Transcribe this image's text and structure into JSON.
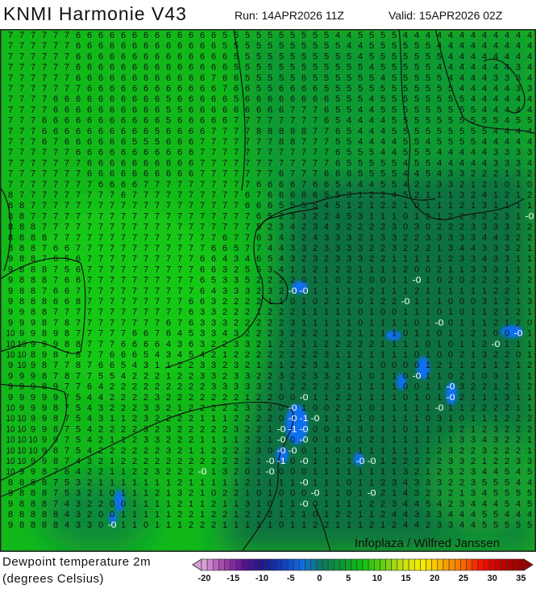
{
  "header": {
    "title": "KNMI Harmonie V43",
    "run": "Run: 14APR2026 11Z",
    "valid": "Valid: 15APR2026 02Z"
  },
  "legend": {
    "line1": "Dewpoint temperature 2m",
    "line2": "(degrees Celsius)",
    "ticks": [
      "-20",
      "-15",
      "-10",
      "-5",
      "0",
      "5",
      "10",
      "15",
      "20",
      "25",
      "30",
      "35"
    ],
    "range": [
      -20,
      35
    ],
    "color_stops": [
      "#d8a0d8",
      "#a040a8",
      "#5a1090",
      "#1a1a8a",
      "#1040c0",
      "#1070e0",
      "#0a7a5a",
      "#0a9a30",
      "#10c010",
      "#60d010",
      "#c8e010",
      "#f8f000",
      "#f8b000",
      "#f87000",
      "#f81000",
      "#c00000",
      "#a00000"
    ]
  },
  "watermark": "Infoplaza / Wilfred Janssen",
  "colors": {
    "coast": "#111111",
    "bright_green": "#12c412",
    "mid_green": "#0b9a30",
    "dark_teal": "#0b6e45",
    "below_zero_blue": "#1070f0"
  },
  "grid_rows": [
    "7 7 7 7 7 7 6 6 6 6 6 6 6 6 6 6 6 6 6 5 5 5 5 5 5 5 5 5 5 4 4 5 5 5 5 4 4 4 4 4 4 4 4 4 4 4 4",
    "7 7 7 7 7 7 6 6 6 6 6 6 6 6 6 6 6 6 6 5 5 5 5 5 5 5 5 5 5 5 4 4 5 5 5 5 5 5 4 4 4 4 4 4 4 4 4",
    "7 7 7 7 7 7 6 6 6 6 6 6 6 6 6 6 6 6 6 6 5 5 5 5 5 5 5 5 5 5 5 4 5 5 5 5 5 5 5 4 4 4 4 4 4 4 4",
    "7 7 7 7 7 7 6 6 6 6 6 6 6 6 6 6 6 6 6 6 5 5 5 5 5 5 5 5 5 5 5 5 4 5 5 5 5 5 4 4 4 4 4 4 4 3 4",
    "7 7 7 7 7 7 6 6 6 6 6 6 6 6 6 6 6 6 7 6 6 5 5 5 5 5 6 5 5 5 5 5 5 4 5 5 5 5 5 4 4 4 4 3 3 3 4",
    "7 7 7 7 7 7 7 6 6 6 6 6 6 6 6 6 6 6 6 7 6 6 5 5 6 6 6 6 5 5 5 5 5 5 5 5 5 5 5 5 4 4 4 4 4 3 3",
    "7 7 7 7 6 6 6 6 6 6 6 6 6 6 5 6 6 6 6 6 5 6 6 6 6 6 6 6 6 5 5 5 4 5 5 5 5 5 5 5 5 4 4 4 4 4 4",
    "7 7 7 7 6 6 6 6 6 6 6 6 6 6 5 5 6 6 6 6 6 6 6 6 6 7 7 7 6 5 5 4 4 5 5 5 5 5 5 5 5 5 4 4 4 4 4",
    "7 7 7 6 6 6 6 6 6 6 6 6 6 6 5 6 6 6 6 6 7 7 7 7 7 7 7 7 6 5 4 4 4 4 5 5 5 5 5 5 5 5 5 5 4 5 5",
    "7 7 7 6 6 6 6 6 6 6 6 6 6 5 6 6 6 6 7 7 7 7 8 8 8 8 8 7 7 6 5 4 4 4 5 5 5 5 5 5 5 5 5 4 4 4 4",
    "7 7 7 6 7 6 6 6 6 6 6 5 5 5 6 6 6 7 7 7 7 7 7 7 8 8 7 7 7 5 5 4 4 4 4 5 5 4 5 5 5 5 4 4 4 4 4",
    "7 7 7 7 7 7 6 6 6 6 6 6 6 6 6 6 6 7 7 7 7 7 7 7 7 7 7 7 7 6 5 5 5 4 4 5 5 5 4 4 4 4 4 3 3 3 3",
    "7 7 7 7 7 7 7 6 6 6 6 6 6 6 6 6 6 7 7 7 7 7 7 7 7 7 7 7 7 6 5 5 5 5 5 4 5 5 4 4 4 4 4 3 3 3 4",
    "7 7 7 7 7 7 7 6 6 6 6 6 6 6 6 6 6 7 7 7 7 7 7 7 6 7 7 7 6 6 6 5 5 5 5 4 4 5 4 3 3 2 2 2 1 3 2",
    "7 7 7 7 7 7 7 7 6 6 6 6 7 7 7 7 7 7 7 7 7 7 6 6 6 6 7 6 6 5 4 4 4 5 5 4 2 2 3 3 2 1 2 1 0 1 0",
    "8 7 7 7 7 7 7 7 7 7 6 7 7 7 7 7 7 7 7 7 7 6 7 6 6 6 6 6 5 5 3 1 2 2 4 5 2 1 1 1 3 2 4 1 2 1 2",
    "8 8 7 7 7 7 7 7 7 7 7 7 7 7 7 7 7 7 7 7 7 6 6 6 5 5 5 5 4 5 1 2 1 2 2 1 0 1 1 1 2 1 3 1 1 1 1",
    "8 8 7 7 7 7 7 7 7 7 7 7 7 7 7 7 7 7 7 7 7 7 6 5 2 3 3 2 2 4 5 3 1 1 1 0 1 2 1 2 2 3 2 2 3 1 -0",
    "8 8 8 7 7 7 7 7 7 7 7 7 7 7 7 7 7 7 7 7 7 7 5 2 3 4 2 3 4 3 2 2 2 2 3 0 3 0 2 2 2 3 3 3 3 2 2",
    "8 8 8 8 7 7 7 7 7 7 7 7 7 7 7 7 7 7 7 6 7 7 6 3 4 3 2 4 3 3 3 2 1 3 3 2 2 3 3 3 3 3 4 4 3 2 2",
    "8 8 8 7 6 6 7 7 7 7 7 7 7 7 7 7 7 7 6 6 5 7 7 4 4 3 3 2 3 3 3 3 2 2 3 2 2 2 1 3 4 4 3 3 3 2 1",
    "9 8 8 7 6 5 6 7 7 7 7 7 7 7 7 7 7 6 6 4 3 4 6 5 4 3 2 3 2 3 3 3 2 2 1 1 1 1 1 2 3 3 4 3 3 1 1",
    "9 8 8 8 7 5 6 7 7 7 7 7 7 7 7 7 7 6 6 3 2 5 5 3 4 1 1 2 1 2 2 1 1 1 1 2 0 0 2 1 1 3 3 3 1 1 1",
    "9 8 8 8 7 6 6 7 7 7 7 7 7 7 7 7 7 6 5 3 3 5 2 2 2 2 0 1 1 0 2 2 0 0 1 1 -0 1 0 2 0 2 2 2 3 2 2",
    "9 8 8 7 6 6 7 7 7 7 7 7 7 7 7 7 7 6 4 3 3 3 2 3 2 -0 -0 1 1 1 1 2 2 1 1 1 2 1 1 1 1 1 1 2 2 1 1",
    "9 8 8 8 6 6 8 7 7 7 7 7 7 7 7 7 6 6 3 2 2 2 2 1 1 0 1 0 2 1 2 0 1 2 2 -0 1 1 1 0 0 0 3 1 2 1 3",
    "9 9 8 8 7 7 7 7 7 7 7 7 7 7 7 7 6 3 3 2 2 2 1 2 2 2 1 1 1 1 1 0 1 0 0 1 1 1 0 1 0 1 1 2 1 2 1",
    "9 9 9 8 7 8 7 7 7 7 7 7 7 7 6 7 6 3 3 3 2 2 2 2 2 3 1 1 1 1 1 0 1 1 1 1 0 1 -0 0 1 1 1 2 1 2 0",
    "10 9 9 8 9 8 7 7 7 7 7 6 6 7 6 4 5 3 3 4 3 2 2 2 3 2 2 2 1 1 2 1 1 1 1 0 1 1 0 1 1 2 1 0 0 -0 1",
    "10 10 9 9 9 8 8 7 7 7 6 6 6 6 4 3 6 3 2 2 3 3 2 1 2 2 1 1 2 2 2 2 2 1 1 1 1 0 1 0 1 1 2 -0 1 1 1",
    "10 10 8 9 8 7 8 7 7 6 6 6 5 4 3 4 5 4 2 1 2 2 2 2 2 2 2 2 3 1 1 2 1 1 1 1 0 1 0 0 2 1 3 2 2 0 1",
    "9 10 9 8 7 7 8 7 6 6 5 4 3 1 1 2 2 3 3 2 3 2 1 2 1 2 2 3 3 1 1 1 1 0 0 0 0 1 2 1 1 2 1 1 2 1 2",
    "9 9 9 8 7 8 7 7 5 5 4 2 2 2 1 2 2 3 3 2 3 3 2 2 3 2 2 3 3 2 1 1 0 1 1 0 -0 1 1 0 2 1 0 3 1 1 1",
    "9 9 9 8 9 7 7 6 4 2 2 2 2 2 2 2 2 2 3 3 3 3 3 2 1 2 2 2 2 3 1 1 1 1 1 0 0 1 1 -0 3 2 2 1 2 1 2",
    "9 9 9 9 9 7 5 4 4 2 2 2 2 3 2 2 2 2 2 2 2 1 2 2 0 0 -0 1 1 2 2 1 1 1 1 0 1 0 1 -0 2 1 1 1 3 1 1",
    "10 9 9 9 8 7 5 4 3 2 2 2 3 3 2 1 2 2 2 2 2 3 3 2 0 -0 1 0 0 2 2 1 0 1 1 1 1 1 -0 1 1 2 2 2 2 1 1",
    "10 10 9 9 8 7 5 4 3 1 1 2 3 2 2 2 2 1 1 1 2 2 2 2 0 -0 -1 -0 1 1 2 1 0 1 1 1 1 0 3 1 0 1 1 1 2 2 2",
    "10 10 9 9 8 7 5 4 2 2 2 2 3 2 3 2 2 2 2 2 3 2 2 1 -0 -1 -0 0 0 1 1 3 1 1 1 0 1 1 3 3 2 1 2 3 2 2 2",
    "10 10 10 9 9 7 5 4 2 1 1 2 3 3 2 2 2 1 1 1 1 2 2 1 -0 0 -0 0 1 0 0 1 2 1 1 1 1 1 1 1 3 3 4 3 2 2 1",
    "10 10 10 9 8 7 5 4 2 2 2 2 2 2 3 2 1 1 2 2 2 2 3 0 -0 -0 0 1 1 0 1 1 1 1 1 1 1 1 2 3 2 2 3 2 2 2 1",
    "10 10 9 9 8 7 4 3 2 1 2 2 2 2 2 2 2 2 2 2 2 2 1 -0 -1 0 -0 1 1 1 1 -0 -0 1 2 2 2 2 2 3 3 2 1 2 2 3 3",
    "10 9 9 8 7 6 4 2 2 1 1 2 2 3 2 2 2 -0 1 3 2 0 1 -0 0 0 0 1 1 1 1 1 1 1 1 3 2 1 2 3 2 3 4 4 5 4 5",
    "8 8 8 8 7 5 3 2 1 1 1 1 1 1 1 2 1 1 1 1 1 2 1 1 1 1 -0 1 1 1 0 1 1 2 3 4 3 3 3 2 2 3 5 5 5 4 4",
    "9 8 8 8 7 5 3 2 1 0 1 1 1 2 1 3 2 1 0 2 2 1 0 1 0 0 0 -0 1 1 0 1 -0 2 1 4 3 2 3 2 1 3 4 5 5 5 5",
    "9 8 8 8 7 4 3 2 2 0 0 1 1 1 1 2 1 1 2 1 1 3 1 0 1 1 -0 0 1 1 1 1 2 2 3 4 4 5 4 2 3 4 4 4 5 4 5",
    "8 8 8 8 8 4 3 2 0 0 1 1 1 1 1 2 2 1 2 2 1 2 2 2 1 2 1 0 1 2 2 1 1 2 4 4 3 3 3 4 4 4 5 5 4 4 4",
    "9 8 8 8 8 4 3 3 0 -0 1 1 0 1 1 1 2 2 2 1 1 1 1 1 0 1 1 2 2 1 1 1 2 1 2 4 4 2 3 3 4 4 5 5 5 5 5"
  ]
}
